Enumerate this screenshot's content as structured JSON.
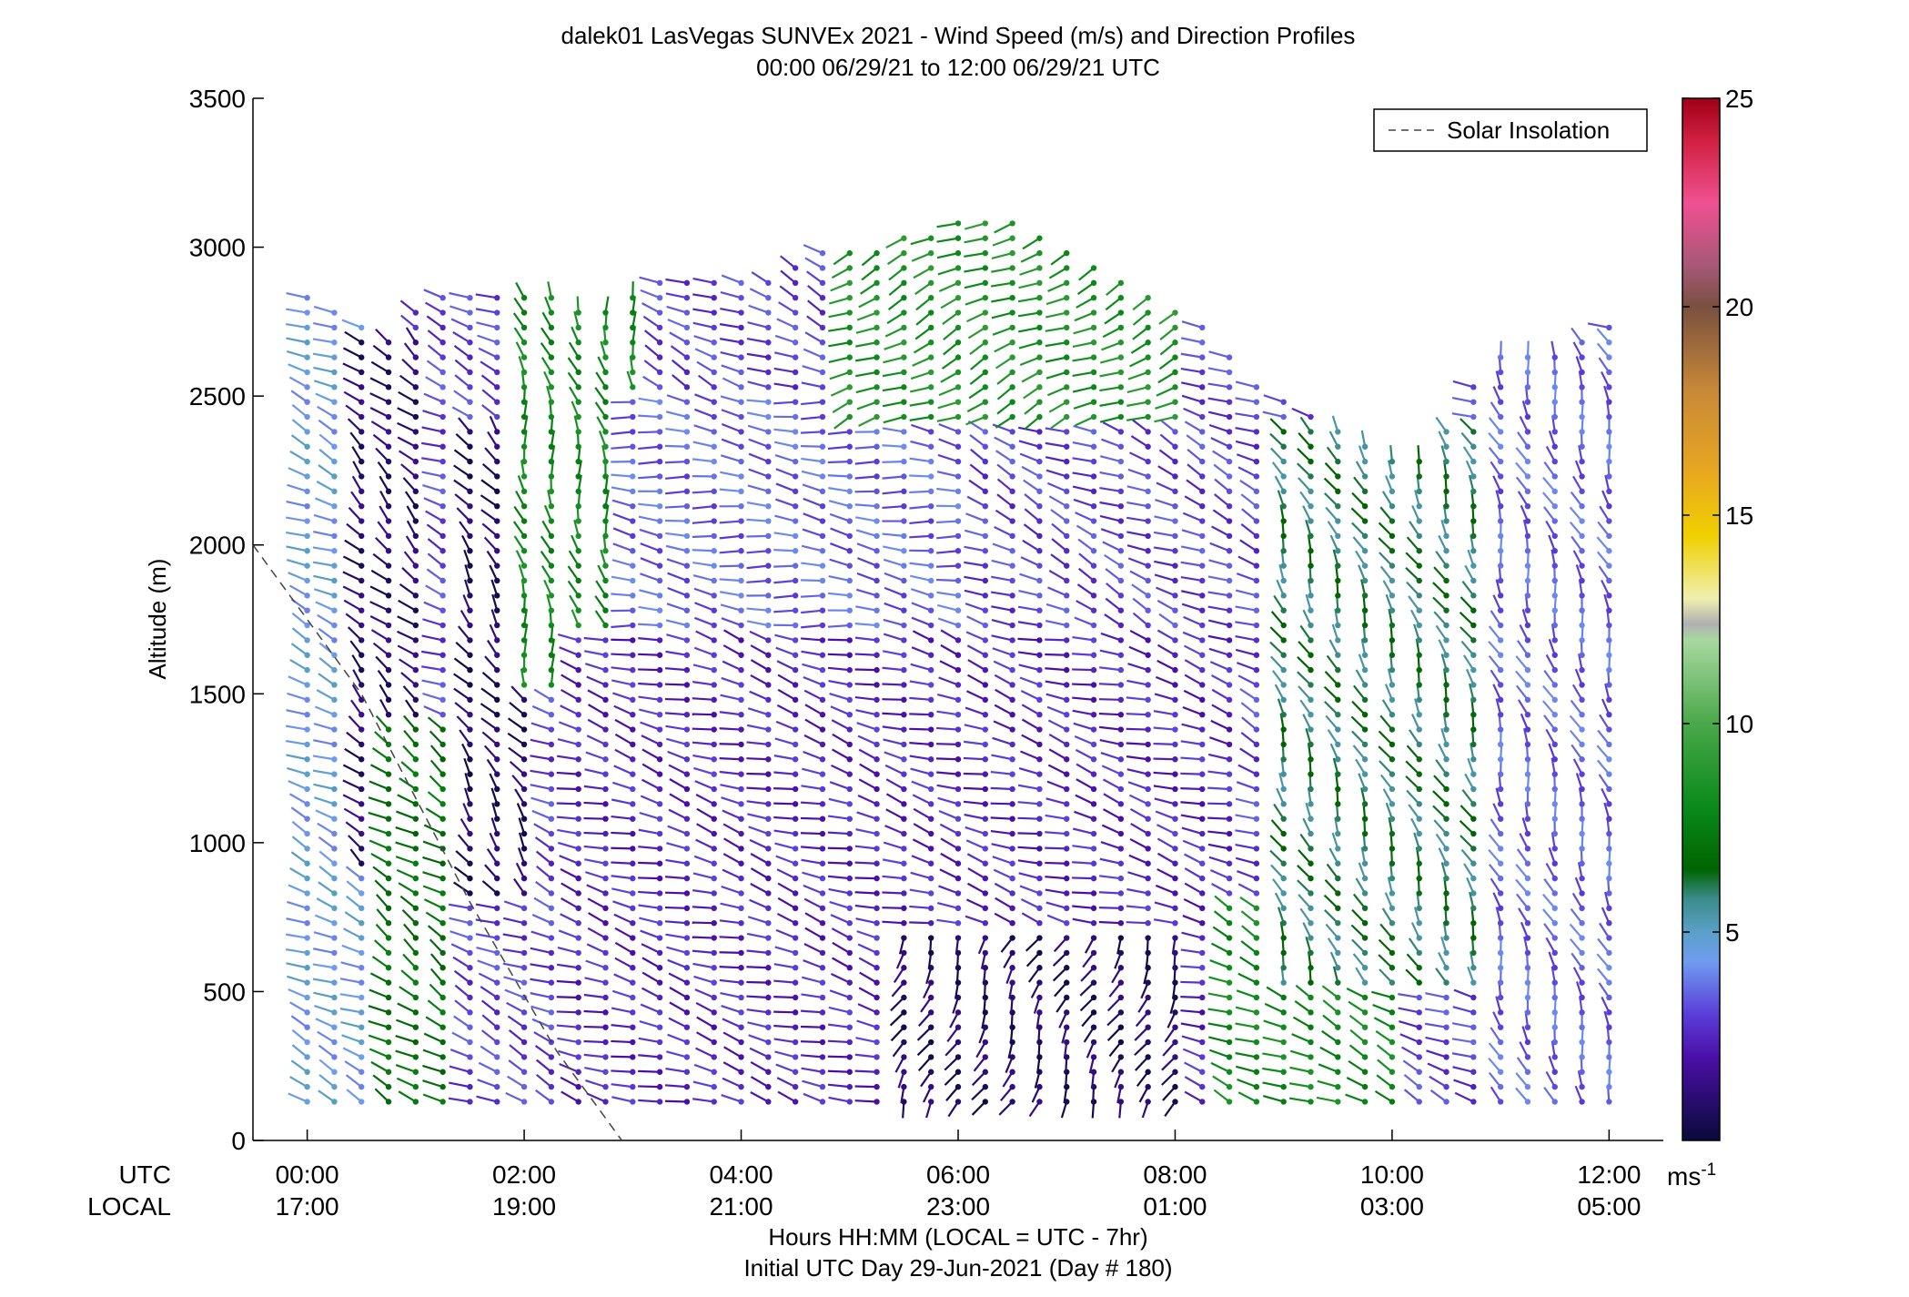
{
  "chart_data": {
    "type": "wind_barb_profile",
    "title": "dalek01 LasVegas SUNVEx 2021 - Wind Speed (m/s) and Direction Profiles",
    "subtitle": "00:00 06/29/21 to 12:00 06/29/21  UTC",
    "ylabel": "Altitude (m)",
    "xlabel": "Hours HH:MM  (LOCAL = UTC - 7hr)",
    "xlabel2": "Initial UTC Day 29-Jun-2021 (Day # 180)",
    "row_label_utc": "UTC",
    "row_label_local": "LOCAL",
    "xlim_hours": [
      -0.5,
      12.5
    ],
    "ylim": [
      0,
      3500
    ],
    "y_ticks": [
      0,
      500,
      1000,
      1500,
      2000,
      2500,
      3000,
      3500
    ],
    "x_ticks": [
      {
        "hour": 0,
        "utc": "00:00",
        "local": "17:00"
      },
      {
        "hour": 2,
        "utc": "02:00",
        "local": "19:00"
      },
      {
        "hour": 4,
        "utc": "04:00",
        "local": "21:00"
      },
      {
        "hour": 6,
        "utc": "06:00",
        "local": "23:00"
      },
      {
        "hour": 8,
        "utc": "08:00",
        "local": "01:00"
      },
      {
        "hour": 10,
        "utc": "10:00",
        "local": "03:00"
      },
      {
        "hour": 12,
        "utc": "12:00",
        "local": "05:00"
      }
    ],
    "legend": {
      "label": "Solar Insolation",
      "position": "top-right",
      "style": "dashed"
    },
    "solar_insolation_line": [
      [
        -0.5,
        2000
      ],
      [
        0.5,
        1500
      ],
      [
        1.5,
        800
      ],
      [
        2.3,
        300
      ],
      [
        2.9,
        0
      ]
    ],
    "colorbar": {
      "unit": "ms-1",
      "range": [
        0,
        25
      ],
      "ticks": [
        5,
        10,
        15,
        20,
        25
      ],
      "stops": [
        {
          "v": 0,
          "c": "#0a0a3a"
        },
        {
          "v": 2,
          "c": "#4b0fa8"
        },
        {
          "v": 3,
          "c": "#5a3cd8"
        },
        {
          "v": 4.3,
          "c": "#6f9cf0"
        },
        {
          "v": 5,
          "c": "#5aa0c8"
        },
        {
          "v": 5.8,
          "c": "#3b8c8a"
        },
        {
          "v": 6.5,
          "c": "#006400"
        },
        {
          "v": 8,
          "c": "#0a8a1a"
        },
        {
          "v": 10,
          "c": "#4aa84a"
        },
        {
          "v": 12,
          "c": "#a8d8a0"
        },
        {
          "v": 12.4,
          "c": "#b0b0b0"
        },
        {
          "v": 13,
          "c": "#f0f0b0"
        },
        {
          "v": 14.5,
          "c": "#f0d000"
        },
        {
          "v": 16,
          "c": "#e8a820"
        },
        {
          "v": 18,
          "c": "#c88838"
        },
        {
          "v": 20,
          "c": "#7a5040"
        },
        {
          "v": 21,
          "c": "#a85878"
        },
        {
          "v": 22.5,
          "c": "#f05090"
        },
        {
          "v": 24,
          "c": "#d02040"
        },
        {
          "v": 25,
          "c": "#a00018"
        }
      ]
    },
    "profile_times_hours": [
      0,
      0.25,
      0.5,
      0.75,
      1.0,
      1.25,
      1.5,
      1.75,
      2.0,
      2.25,
      2.5,
      2.75,
      3.0,
      3.25,
      3.5,
      3.75,
      4.0,
      4.25,
      4.5,
      4.75,
      5.0,
      5.25,
      5.5,
      5.75,
      6.0,
      6.25,
      6.5,
      6.75,
      7.0,
      7.25,
      7.5,
      7.75,
      8.0,
      8.25,
      8.5,
      8.75,
      9.0,
      9.25,
      9.5,
      9.75,
      10.0,
      10.25,
      10.5,
      10.75,
      11.0,
      11.25,
      11.5,
      11.75,
      12.0
    ],
    "profile_tops_m": [
      2850,
      2800,
      2750,
      2700,
      2800,
      2850,
      2850,
      2850,
      2850,
      2850,
      2800,
      2800,
      2850,
      2900,
      2900,
      2900,
      2900,
      2900,
      2950,
      3000,
      3000,
      3000,
      3050,
      3050,
      3100,
      3100,
      3100,
      3050,
      3000,
      2950,
      2900,
      2850,
      2800,
      2750,
      2650,
      2550,
      2500,
      2450,
      2400,
      2350,
      2300,
      2300,
      2400,
      2550,
      2650,
      2650,
      2650,
      2700,
      2750
    ],
    "profile_bottom_m": 130,
    "level_spacing_m": 50,
    "representative_segments": [
      {
        "hours": [
          0,
          0.75
        ],
        "alt": [
          130,
          2850
        ],
        "speed": 4.5,
        "dir_deg": 300
      },
      {
        "hours": [
          0.5,
          1.0
        ],
        "alt": [
          900,
          2700
        ],
        "speed": 1.0,
        "dir_deg": 320
      },
      {
        "hours": [
          0.75,
          1.25
        ],
        "alt": [
          130,
          1400
        ],
        "speed": 7.0,
        "dir_deg": 310
      },
      {
        "hours": [
          1.5,
          2.0
        ],
        "alt": [
          800,
          2400
        ],
        "speed": 0.8,
        "dir_deg": 330
      },
      {
        "hours": [
          2.0,
          3.0
        ],
        "alt": [
          1500,
          2850
        ],
        "speed": 8.0,
        "dir_deg": 350
      },
      {
        "hours": [
          2.5,
          8.5
        ],
        "alt": [
          130,
          1700
        ],
        "speed": 2.5,
        "dir_deg": 290
      },
      {
        "hours": [
          3.0,
          6.0
        ],
        "alt": [
          1700,
          2500
        ],
        "speed": 3.5,
        "dir_deg": 280
      },
      {
        "hours": [
          5.0,
          8.0
        ],
        "alt": [
          2400,
          3100
        ],
        "speed": 8.5,
        "dir_deg": 240
      },
      {
        "hours": [
          5.5,
          8.0
        ],
        "alt": [
          130,
          700
        ],
        "speed": 0.8,
        "dir_deg": 200
      },
      {
        "hours": [
          8.5,
          10.0
        ],
        "alt": [
          130,
          800
        ],
        "speed": 8.0,
        "dir_deg": 300
      },
      {
        "hours": [
          9.0,
          11.0
        ],
        "alt": [
          500,
          2400
        ],
        "speed": 6.0,
        "dir_deg": 340
      },
      {
        "hours": [
          11.0,
          12.0
        ],
        "alt": [
          130,
          2700
        ],
        "speed": 3.5,
        "dir_deg": 345
      }
    ]
  }
}
